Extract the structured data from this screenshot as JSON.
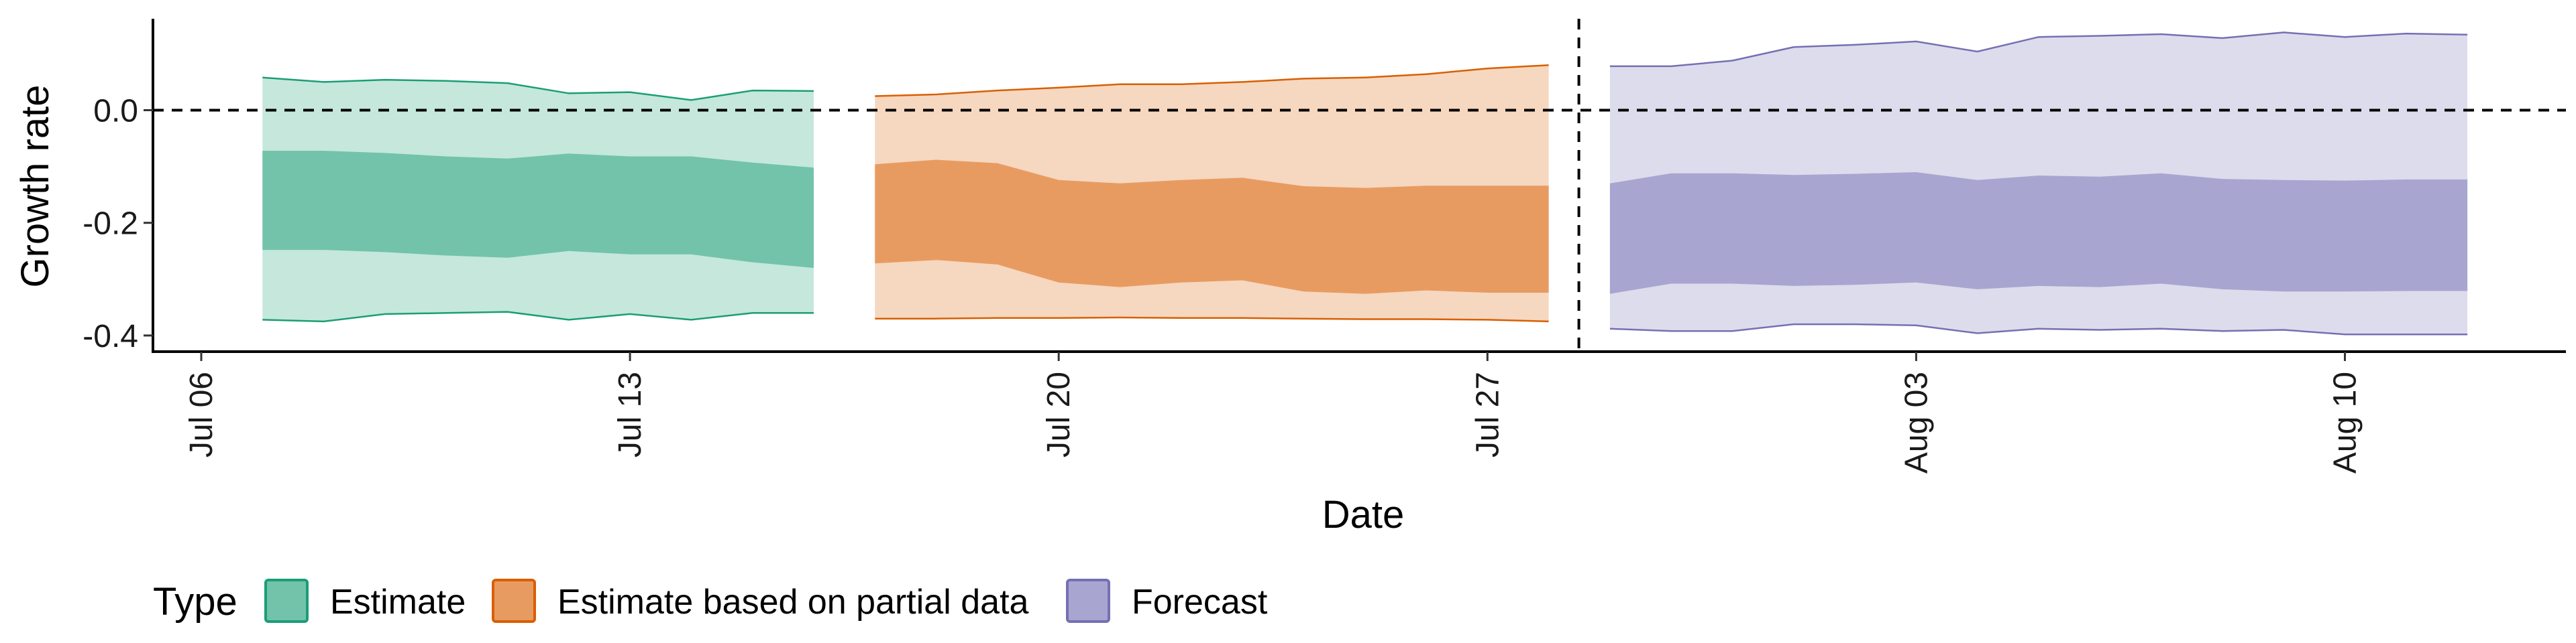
{
  "chart_data": {
    "type": "area",
    "xlabel": "Date",
    "ylabel": "Growth rate",
    "x_range": [
      "2020-07-06",
      "2020-08-12"
    ],
    "ylim": [
      -0.42,
      0.16
    ],
    "x_ticks": [
      {
        "date": "2020-07-06",
        "label": "Jul 06"
      },
      {
        "date": "2020-07-13",
        "label": "Jul 13"
      },
      {
        "date": "2020-07-20",
        "label": "Jul 20"
      },
      {
        "date": "2020-07-27",
        "label": "Jul 27"
      },
      {
        "date": "2020-08-03",
        "label": "Aug 03"
      },
      {
        "date": "2020-08-10",
        "label": "Aug 10"
      }
    ],
    "y_ticks": [
      {
        "value": 0.0,
        "label": "0.0"
      },
      {
        "value": -0.2,
        "label": "-0.2"
      },
      {
        "value": -0.4,
        "label": "-0.4"
      }
    ],
    "reference_lines": {
      "horizontal_y": 0.0,
      "vertical_date": "2020-07-28"
    },
    "grid": false,
    "legend": {
      "title": "Type",
      "position": "bottom-left",
      "items": [
        {
          "label": "Estimate",
          "fill": "#72c3a9",
          "stroke": "#1b9e77"
        },
        {
          "label": "Estimate based on partial data",
          "fill": "#e89b61",
          "stroke": "#d95f02"
        },
        {
          "label": "Forecast",
          "fill": "#a8a6d0",
          "stroke": "#7570b3"
        }
      ]
    },
    "series": [
      {
        "type_label": "Estimate",
        "outer_fill": "#c5e7dc",
        "inner_fill": "#72c3a9",
        "line_color": "#1b9e77",
        "dates": [
          "2020-07-07",
          "2020-07-08",
          "2020-07-09",
          "2020-07-10",
          "2020-07-11",
          "2020-07-12",
          "2020-07-13",
          "2020-07-14",
          "2020-07-15",
          "2020-07-16"
        ],
        "upper90": [
          0.058,
          0.05,
          0.054,
          0.052,
          0.048,
          0.03,
          0.032,
          0.018,
          0.035,
          0.034
        ],
        "upper50": [
          -0.072,
          -0.072,
          -0.076,
          -0.082,
          -0.086,
          -0.077,
          -0.082,
          -0.082,
          -0.093,
          -0.102
        ],
        "lower50": [
          -0.248,
          -0.248,
          -0.252,
          -0.258,
          -0.262,
          -0.25,
          -0.256,
          -0.256,
          -0.27,
          -0.28
        ],
        "lower90": [
          -0.372,
          -0.375,
          -0.362,
          -0.36,
          -0.358,
          -0.372,
          -0.362,
          -0.372,
          -0.36,
          -0.36
        ]
      },
      {
        "type_label": "Estimate based on partial data",
        "outer_fill": "#f6d7c0",
        "inner_fill": "#e89b61",
        "line_color": "#d95f02",
        "dates": [
          "2020-07-17",
          "2020-07-18",
          "2020-07-19",
          "2020-07-20",
          "2020-07-21",
          "2020-07-22",
          "2020-07-23",
          "2020-07-24",
          "2020-07-25",
          "2020-07-26",
          "2020-07-27",
          "2020-07-28"
        ],
        "upper90": [
          0.025,
          0.028,
          0.035,
          0.04,
          0.046,
          0.046,
          0.05,
          0.056,
          0.058,
          0.064,
          0.074,
          0.08
        ],
        "upper50": [
          -0.096,
          -0.088,
          -0.094,
          -0.124,
          -0.13,
          -0.124,
          -0.12,
          -0.135,
          -0.138,
          -0.134,
          -0.134,
          -0.134
        ],
        "lower50": [
          -0.272,
          -0.266,
          -0.274,
          -0.306,
          -0.314,
          -0.306,
          -0.302,
          -0.322,
          -0.326,
          -0.32,
          -0.324,
          -0.324
        ],
        "lower90": [
          -0.37,
          -0.37,
          -0.369,
          -0.369,
          -0.368,
          -0.369,
          -0.369,
          -0.37,
          -0.371,
          -0.371,
          -0.372,
          -0.375
        ]
      },
      {
        "type_label": "Forecast",
        "outer_fill": "#dddcec",
        "inner_fill": "#a8a6d0",
        "line_color": "#7570b3",
        "dates": [
          "2020-07-29",
          "2020-07-30",
          "2020-07-31",
          "2020-08-01",
          "2020-08-02",
          "2020-08-03",
          "2020-08-04",
          "2020-08-05",
          "2020-08-06",
          "2020-08-07",
          "2020-08-08",
          "2020-08-09",
          "2020-08-10",
          "2020-08-11",
          "2020-08-12"
        ],
        "upper90": [
          0.078,
          0.078,
          0.088,
          0.112,
          0.116,
          0.122,
          0.104,
          0.13,
          0.132,
          0.135,
          0.128,
          0.138,
          0.13,
          0.136,
          0.134
        ],
        "upper50": [
          -0.13,
          -0.112,
          -0.112,
          -0.115,
          -0.113,
          -0.11,
          -0.124,
          -0.116,
          -0.118,
          -0.112,
          -0.122,
          -0.124,
          -0.125,
          -0.123,
          -0.123
        ],
        "lower50": [
          -0.326,
          -0.308,
          -0.308,
          -0.312,
          -0.31,
          -0.306,
          -0.318,
          -0.312,
          -0.314,
          -0.308,
          -0.318,
          -0.322,
          -0.322,
          -0.321,
          -0.321
        ],
        "lower90": [
          -0.388,
          -0.392,
          -0.392,
          -0.38,
          -0.38,
          -0.382,
          -0.396,
          -0.388,
          -0.39,
          -0.388,
          -0.392,
          -0.39,
          -0.398,
          -0.398,
          -0.398
        ]
      }
    ]
  }
}
